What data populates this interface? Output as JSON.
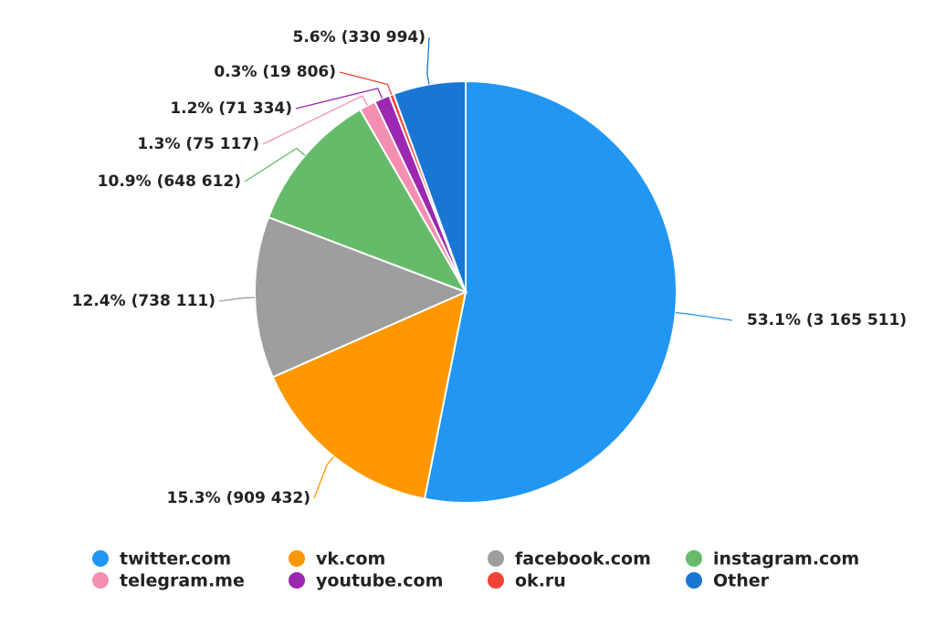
{
  "chart_data": {
    "type": "pie",
    "categories": [
      "twitter.com",
      "vk.com",
      "facebook.com",
      "instagram.com",
      "telegram.me",
      "youtube.com",
      "ok.ru",
      "Other"
    ],
    "values": [
      3165511,
      909432,
      738111,
      648612,
      75117,
      71334,
      19806,
      330994
    ],
    "value_labels": [
      "53.1% (3 165 511)",
      "15.3% (909 432)",
      "12.4% (738 111)",
      "10.9% (648 612)",
      "1.3% (75 117)",
      "1.2% (71 334)",
      "0.3% (19 806)",
      "5.6% (330 994)"
    ],
    "colors": [
      "#2196f3",
      "#ff9800",
      "#9e9e9e",
      "#66bb6a",
      "#f48fb1",
      "#9c27b0",
      "#f44336",
      "#1976d2"
    ],
    "legend": "bottom"
  }
}
